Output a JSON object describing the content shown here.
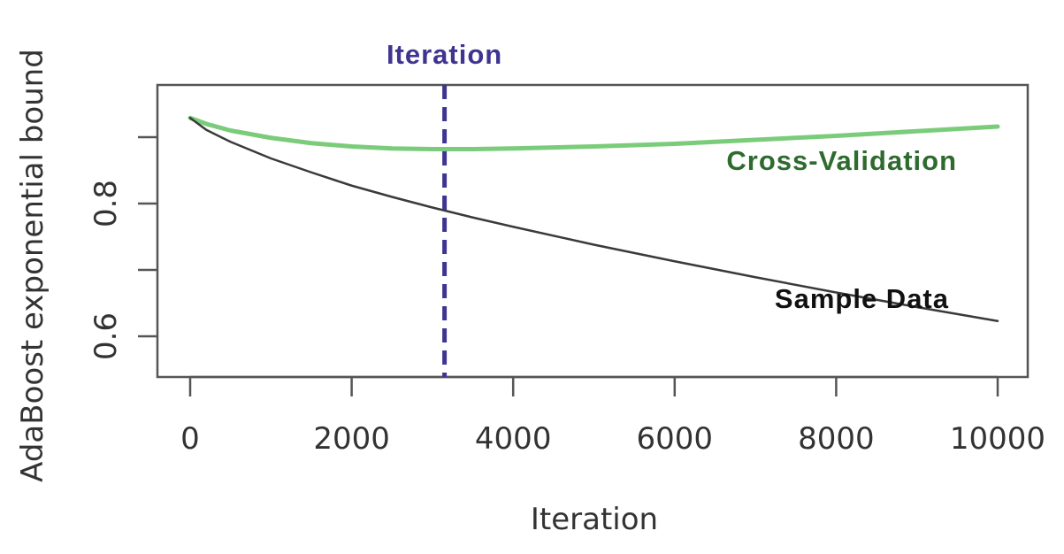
{
  "chart_data": {
    "type": "line",
    "title": "",
    "xlabel": "Iteration",
    "ylabel": "AdaBoost exponential bound",
    "xlim": [
      0,
      10000
    ],
    "ylim": [
      0.56,
      0.96
    ],
    "x_ticks": [
      0,
      2000,
      4000,
      6000,
      8000,
      10000
    ],
    "x_tick_labels": [
      "0",
      "2000",
      "4000",
      "6000",
      "8000",
      "10000"
    ],
    "y_ticks": [
      0.6,
      0.7,
      0.8,
      0.9
    ],
    "y_tick_labels": [
      "0.6",
      "",
      "0.8",
      ""
    ],
    "grid": false,
    "legend": "none",
    "series": [
      {
        "name": "Cross-Validation",
        "color": "#6cc66c",
        "label_color": "#2e6b2e",
        "x": [
          0,
          200,
          500,
          1000,
          1500,
          2000,
          2500,
          3000,
          3500,
          4000,
          5000,
          6000,
          7000,
          8000,
          9000,
          10000
        ],
        "y": [
          0.929,
          0.92,
          0.91,
          0.899,
          0.891,
          0.886,
          0.883,
          0.882,
          0.882,
          0.883,
          0.886,
          0.89,
          0.896,
          0.902,
          0.909,
          0.916
        ]
      },
      {
        "name": "Sample Data",
        "color": "#3a3a3a",
        "label_color": "#111111",
        "x": [
          0,
          200,
          500,
          1000,
          1500,
          2000,
          2500,
          3000,
          3500,
          4000,
          5000,
          6000,
          7000,
          8000,
          9000,
          10000
        ],
        "y": [
          0.929,
          0.911,
          0.893,
          0.868,
          0.847,
          0.827,
          0.81,
          0.794,
          0.779,
          0.765,
          0.738,
          0.713,
          0.689,
          0.666,
          0.644,
          0.623
        ]
      }
    ],
    "annotations": [
      {
        "type": "vline",
        "x": 3150,
        "label": "Iteration",
        "color": "#3f3591"
      }
    ]
  }
}
